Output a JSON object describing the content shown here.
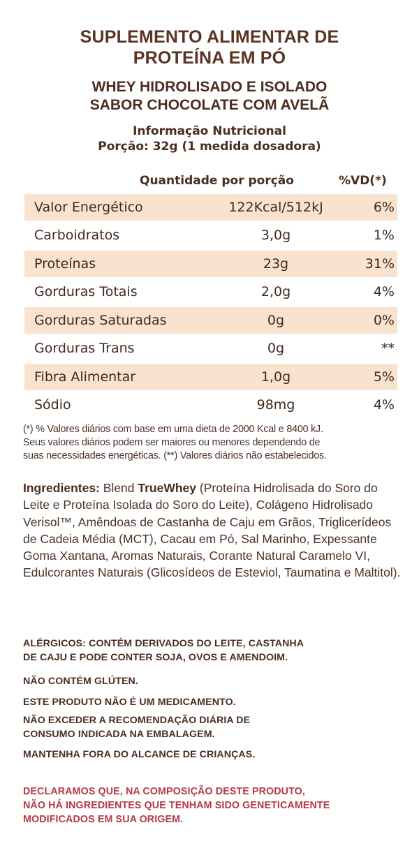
{
  "header": {
    "title_line1": "SUPLEMENTO ALIMENTAR DE",
    "title_line2": "PROTEÍNA EM PÓ",
    "subtitle_line1": "WHEY HIDROLISADO E ISOLADO",
    "subtitle_line2": "SABOR CHOCOLATE COM AVELÃ",
    "info_line1": "Informação Nutricional",
    "info_line2": "Porção: 32g (1 medida dosadora)"
  },
  "table": {
    "col_quantity": "Quantidade por porção",
    "col_vd": "%VD(*)",
    "rows": [
      {
        "name": "Valor Energético",
        "qty": "122Kcal/512kJ",
        "vd": "6%"
      },
      {
        "name": "Carboidratos",
        "qty": "3,0g",
        "vd": "1%"
      },
      {
        "name": "Proteínas",
        "qty": "23g",
        "vd": "31%"
      },
      {
        "name": "Gorduras Totais",
        "qty": "2,0g",
        "vd": "4%"
      },
      {
        "name": "Gorduras Saturadas",
        "qty": "0g",
        "vd": "0%"
      },
      {
        "name": "Gorduras Trans",
        "qty": "0g",
        "vd": "**"
      },
      {
        "name": "Fibra Alimentar",
        "qty": "1,0g",
        "vd": "5%"
      },
      {
        "name": "Sódio",
        "qty": "98mg",
        "vd": "4%"
      }
    ]
  },
  "footnote": {
    "line1": "(*) % Valores diários com base em uma dieta de 2000 Kcal e 8400 kJ.",
    "line2": "Seus valores diários podem ser maiores ou menores dependendo de",
    "line3": "suas necessidades energéticas. (**) Valores diários não estabelecidos."
  },
  "ingredients": {
    "label": "Ingredientes:",
    "blend_prefix": " Blend ",
    "brand": "TrueWhey",
    "text": " (Proteína Hidrolisada do Soro do Leite e Proteína Isolada do Soro do Leite), Colágeno Hidrolisado Verisol™, Amêndoas de Castanha de Caju em Grãos, Triglicerídeos de Cadeia Média (MCT), Cacau em Pó, Sal Marinho, Expessante Goma Xantana, Aromas Naturais, Corante Natural Caramelo VI, Edulcorantes Naturais (Glicosídeos de Esteviol, Taumatina e Maltitol)."
  },
  "warnings": {
    "allergens_line1": "ALÉRGICOS: CONTÉM DERIVADOS DO LEITE, CASTANHA",
    "allergens_line2": "DE CAJU E PODE CONTER SOJA, OVOS E AMENDOIM.",
    "gluten": "NÃO CONTÉM GLÚTEN.",
    "medicine": "ESTE PRODUTO NÃO É UM MEDICAMENTO.",
    "dose_line1": "NÃO EXCEDER A RECOMENDAÇÃO DIÁRIA DE",
    "dose_line2": "CONSUMO INDICADA NA EMBALAGEM.",
    "children": "MANTENHA FORA DO ALCANCE DE CRIANÇAS."
  },
  "declaration": {
    "line1": "DECLARAMOS QUE, NA COMPOSIÇÃO DESTE PRODUTO,",
    "line2": "NÃO HÁ INGREDIENTES QUE TENHAM SIDO GENETICAMENTE",
    "line3": "MODIFICADOS EM SUA ORIGEM."
  },
  "colors": {
    "title": "#5a3322",
    "row_shade": "#f8e3cf",
    "declaration": "#b3394a"
  }
}
